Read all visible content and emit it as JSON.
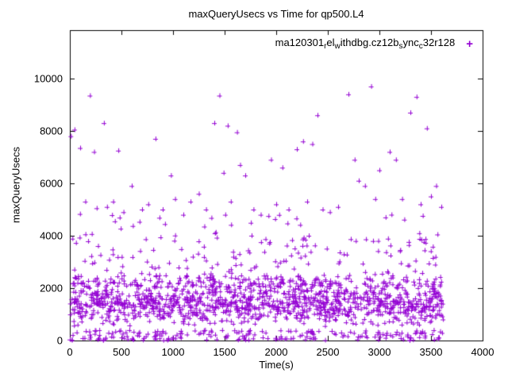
{
  "chart_data": {
    "type": "scatter",
    "title": "maxQueryUsecs vs Time for qp500.L4",
    "xlabel": "Time(s)",
    "ylabel": "maxQueryUsecs",
    "xlim": [
      0,
      4000
    ],
    "ylim": [
      0,
      11850
    ],
    "xticks": [
      0,
      500,
      1000,
      1500,
      2000,
      2500,
      3000,
      3500,
      4000
    ],
    "yticks": [
      0,
      2000,
      4000,
      6000,
      8000,
      10000
    ],
    "grid": false,
    "legend_position": "top-right-inside",
    "series": [
      {
        "name": "ma120301_rel_withdbg.cz12b_sync_c32r128",
        "name_segments": [
          {
            "text": "ma120301"
          },
          {
            "sub": "r"
          },
          {
            "text": "el"
          },
          {
            "sub": "w"
          },
          {
            "text": "ithdbg.cz12b"
          },
          {
            "sub": "s"
          },
          {
            "text": "ync"
          },
          {
            "sub": "c"
          },
          {
            "text": "32r128"
          }
        ],
        "marker": "plus",
        "marker_glyph": "+",
        "color": "#9400d3",
        "x_range": [
          0,
          3620
        ],
        "n_points_approx": 1700,
        "y_bands": [
          {
            "range": [
              0,
              400
            ],
            "weight": 0.12,
            "shape": "uniform"
          },
          {
            "range": [
              500,
              2300
            ],
            "weight": 0.655,
            "shape": "bell"
          },
          {
            "range": [
              2050,
              2500
            ],
            "weight": 0.12,
            "shape": "uniform"
          },
          {
            "range": [
              2500,
              4100
            ],
            "weight": 0.09,
            "shape": "uniform"
          },
          {
            "range": [
              4100,
              4900
            ],
            "weight": 0.015,
            "shape": "uniform"
          }
        ],
        "outlier_points": [
          [
            10,
            7800
          ],
          [
            45,
            8050
          ],
          [
            100,
            7350
          ],
          [
            150,
            5300
          ],
          [
            195,
            9350
          ],
          [
            235,
            7200
          ],
          [
            260,
            5050
          ],
          [
            330,
            8300
          ],
          [
            360,
            5100
          ],
          [
            420,
            5300
          ],
          [
            470,
            7250
          ],
          [
            520,
            4900
          ],
          [
            600,
            5900
          ],
          [
            700,
            5000
          ],
          [
            760,
            5200
          ],
          [
            830,
            7700
          ],
          [
            900,
            5000
          ],
          [
            980,
            6300
          ],
          [
            1020,
            5400
          ],
          [
            1100,
            4800
          ],
          [
            1170,
            5300
          ],
          [
            1250,
            5600
          ],
          [
            1320,
            5000
          ],
          [
            1400,
            8300
          ],
          [
            1450,
            9350
          ],
          [
            1490,
            6400
          ],
          [
            1530,
            8200
          ],
          [
            1560,
            5300
          ],
          [
            1620,
            7950
          ],
          [
            1650,
            6700
          ],
          [
            1700,
            6300
          ],
          [
            1780,
            5000
          ],
          [
            1850,
            4800
          ],
          [
            1950,
            6900
          ],
          [
            2000,
            5200
          ],
          [
            2060,
            6600
          ],
          [
            2120,
            5000
          ],
          [
            2200,
            7300
          ],
          [
            2260,
            7600
          ],
          [
            2300,
            5300
          ],
          [
            2350,
            7500
          ],
          [
            2400,
            8600
          ],
          [
            2450,
            5000
          ],
          [
            2520,
            4900
          ],
          [
            2600,
            5100
          ],
          [
            2700,
            9400
          ],
          [
            2760,
            6900
          ],
          [
            2800,
            6100
          ],
          [
            2860,
            5900
          ],
          [
            2920,
            9700
          ],
          [
            2960,
            5400
          ],
          [
            3000,
            6500
          ],
          [
            3060,
            4700
          ],
          [
            3100,
            7200
          ],
          [
            3160,
            6900
          ],
          [
            3220,
            5400
          ],
          [
            3300,
            8700
          ],
          [
            3360,
            9300
          ],
          [
            3400,
            5200
          ],
          [
            3460,
            8100
          ],
          [
            3500,
            5500
          ],
          [
            3550,
            5900
          ],
          [
            3600,
            5100
          ]
        ]
      }
    ]
  }
}
